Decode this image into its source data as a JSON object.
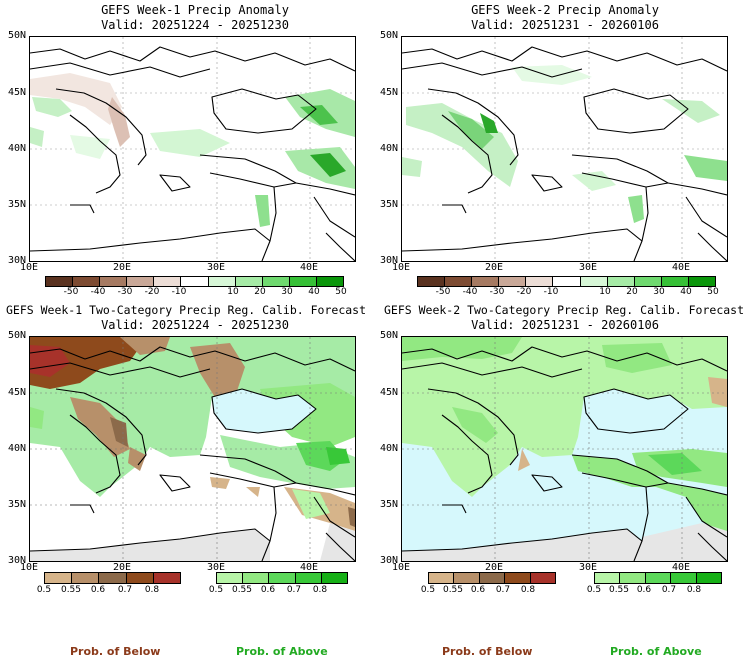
{
  "panels": [
    {
      "title": "GEFS Week-1 Precip Anomaly",
      "valid": "Valid: 20251224 - 20251230"
    },
    {
      "title": "GEFS Week-2 Precip Anomaly",
      "valid": "Valid: 20251231 - 20260106"
    },
    {
      "title": "GEFS Week-1 Two-Category Precip Reg. Calib. Forecast",
      "valid": "Valid: 20251224 - 20251230"
    },
    {
      "title": "GEFS Week-2 Two-Category Precip Reg. Calib. Forecast",
      "valid": "Valid: 20251231 - 20260106"
    }
  ],
  "axes": {
    "lat_labels": [
      "50N",
      "45N",
      "40N",
      "35N",
      "30N"
    ],
    "lon_labels": [
      "10E",
      "20E",
      "30E",
      "40E"
    ]
  },
  "anomaly_colorbar": {
    "labels": [
      "-50",
      "-40",
      "-30",
      "-20",
      "-10",
      "10",
      "20",
      "30",
      "40",
      "50"
    ],
    "colors": [
      "#5a3220",
      "#7d4b32",
      "#a67a62",
      "#c9a898",
      "#ecddd6",
      "#ffffff",
      "#d7f7d7",
      "#a6eba6",
      "#6fd96f",
      "#36c036",
      "#0a960a"
    ]
  },
  "below_colorbar": {
    "labels": [
      "0.5",
      "0.55",
      "0.6",
      "0.7",
      "0.8"
    ],
    "colors": [
      "#d6b48a",
      "#b7906a",
      "#8c6a4a",
      "#8e4a1c",
      "#a7322a"
    ]
  },
  "above_colorbar": {
    "labels": [
      "0.5",
      "0.55",
      "0.6",
      "0.7",
      "0.8"
    ],
    "colors": [
      "#b8f5a8",
      "#92e882",
      "#5cd85a",
      "#38c838",
      "#16b016"
    ]
  },
  "legend": {
    "below": "Prob. of Below",
    "above": "Prob. of Above"
  },
  "colors": {
    "sea": "#d6f8fc",
    "no_data": "#e6e6e6",
    "below_text": "#8b3a1a",
    "above_text": "#22aa22"
  }
}
